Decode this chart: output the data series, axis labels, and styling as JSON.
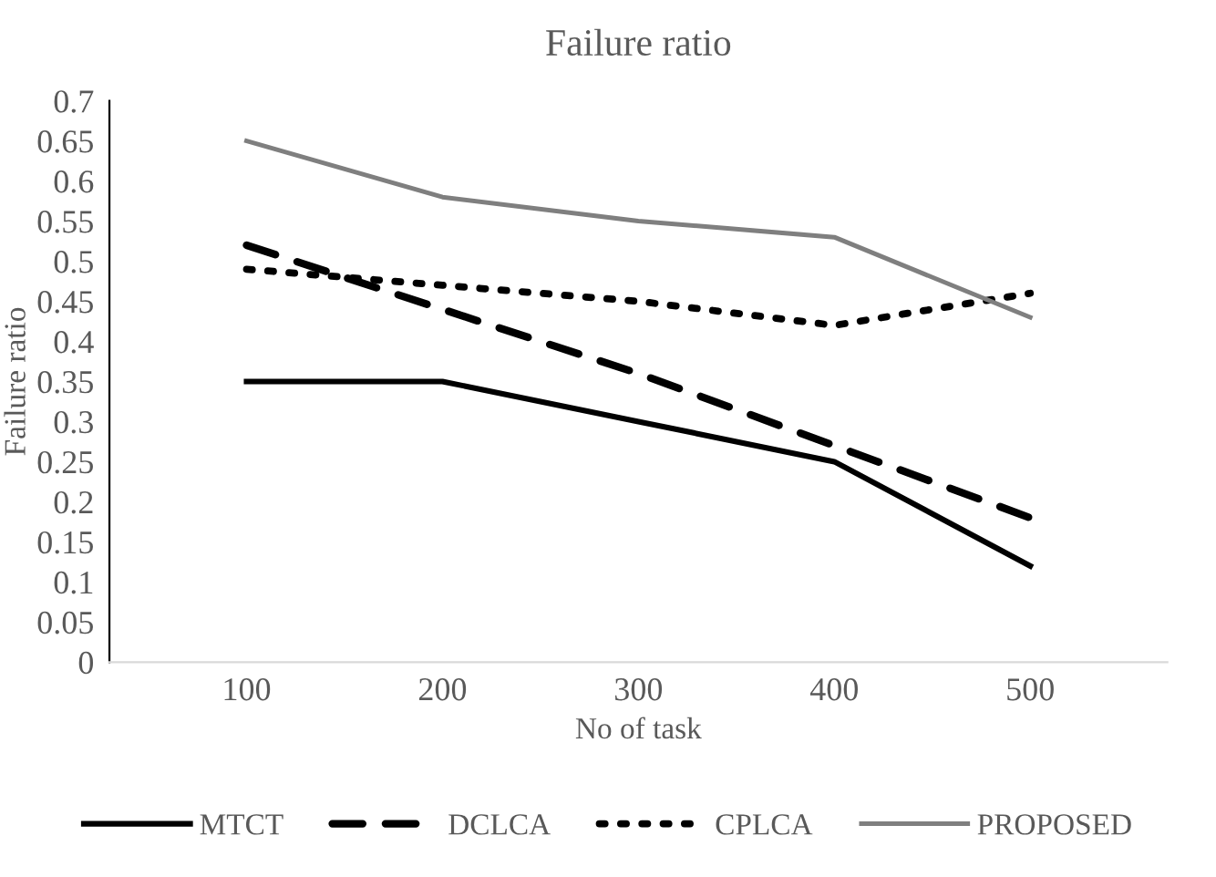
{
  "chart_data": {
    "type": "line",
    "title": "Failure ratio",
    "xlabel": "No of task",
    "ylabel": "Failure ratio",
    "categories": [
      "100",
      "200",
      "300",
      "400",
      "500"
    ],
    "series": [
      {
        "name": "MTCT",
        "color": "#000000",
        "line_style": "solid",
        "values": [
          0.35,
          0.35,
          0.3,
          0.25,
          0.12
        ]
      },
      {
        "name": "DCLCA",
        "color": "#000000",
        "line_style": "dashed",
        "values": [
          0.52,
          0.44,
          0.36,
          0.27,
          0.18
        ]
      },
      {
        "name": "CPLCA",
        "color": "#000000",
        "line_style": "dotted",
        "values": [
          0.49,
          0.47,
          0.45,
          0.42,
          0.46
        ]
      },
      {
        "name": "PROPOSED",
        "color": "#7f7f7f",
        "line_style": "solid",
        "values": [
          0.65,
          0.58,
          0.55,
          0.53,
          0.43
        ]
      }
    ],
    "ylim": [
      0,
      0.7
    ],
    "yticks": [
      0,
      0.05,
      0.1,
      0.15,
      0.2,
      0.25,
      0.3,
      0.35,
      0.4,
      0.45,
      0.5,
      0.55,
      0.6,
      0.65,
      0.7
    ],
    "grid": false,
    "legend": "bottom",
    "marker": "none"
  }
}
